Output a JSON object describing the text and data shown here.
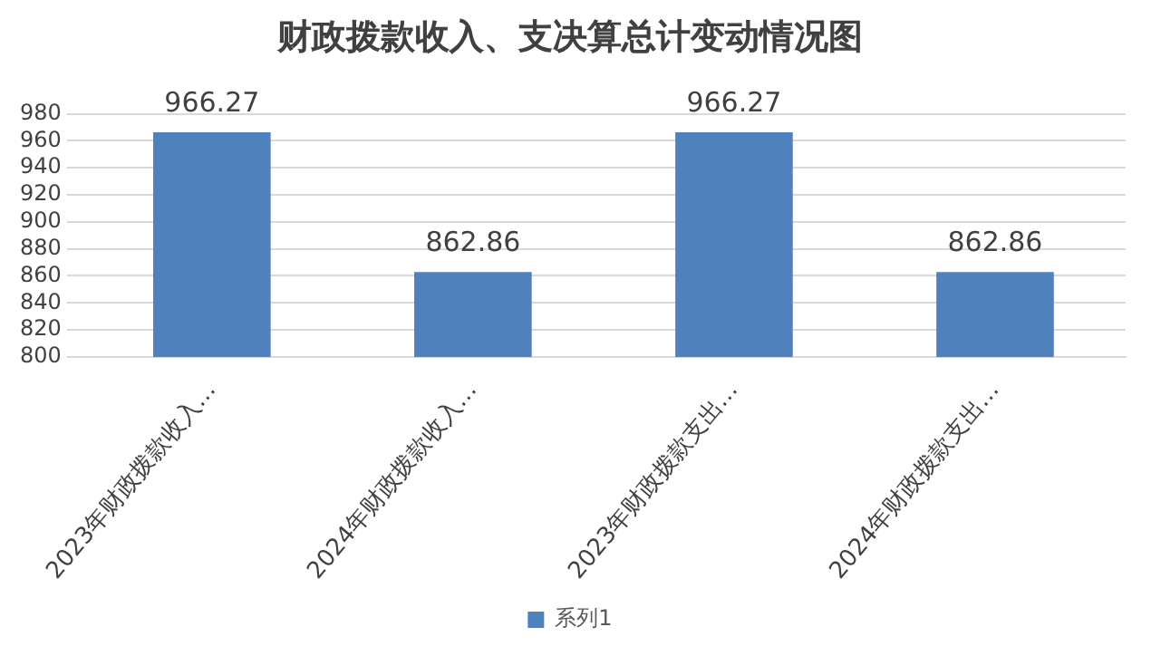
{
  "chart_data": {
    "type": "bar",
    "title": "财政拨款收入、支决算总计变动情况图",
    "categories": [
      "2023年财政拨款收入…",
      "2024年财政拨款收入…",
      "2023年财政拨款支出…",
      "2024年财政拨款支出…"
    ],
    "series": [
      {
        "name": "系列1",
        "color": "#4f81bd",
        "values": [
          966.27,
          862.86,
          966.27,
          862.86
        ]
      }
    ],
    "ylim": [
      800,
      980
    ],
    "yticks": [
      800,
      820,
      840,
      860,
      880,
      900,
      920,
      940,
      960,
      980
    ],
    "grid": "y",
    "legend": "bottom",
    "data_labels": true
  }
}
